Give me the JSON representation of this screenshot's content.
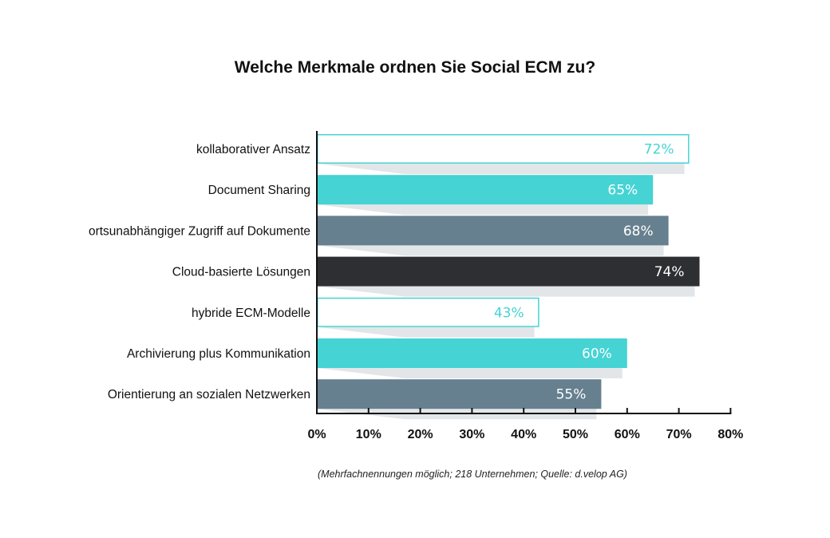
{
  "chart_data": {
    "type": "bar",
    "orientation": "horizontal",
    "title": "Welche Merkmale ordnen Sie Social ECM zu?",
    "categories": [
      "kollaborativer Ansatz",
      "Document Sharing",
      "ortsunabhängiger Zugriff auf Dokumente",
      "Cloud-basierte Lösungen",
      "hybride ECM-Modelle",
      "Archivierung plus Kommunikation",
      "Orientierung an sozialen Netzwerken"
    ],
    "values": [
      72,
      65,
      68,
      74,
      43,
      60,
      55
    ],
    "value_labels": [
      "72%",
      "65%",
      "68%",
      "74%",
      "43%",
      "60%",
      "55%"
    ],
    "bar_styles": [
      "outline",
      "teal",
      "slate",
      "dark",
      "outline",
      "teal",
      "slate"
    ],
    "xlim": [
      0,
      80
    ],
    "xticks": [
      0,
      10,
      20,
      30,
      40,
      50,
      60,
      70,
      80
    ],
    "xtick_labels": [
      "0%",
      "10%",
      "20%",
      "30%",
      "40%",
      "50%",
      "60%",
      "70%",
      "80%"
    ],
    "grid": false,
    "legend": "none",
    "footnote": "(Mehrfachnennungen möglich; 218 Unternehmen; Quelle: d.velop AG)",
    "colors": {
      "teal": "#45d3d4",
      "slate": "#66808f",
      "dark": "#2e2f32",
      "outline_stroke": "#45d3d4",
      "outline_text": "#45d3d4",
      "shadow": "#e3e6e8",
      "axis": "#111111",
      "filled_text": "#ffffff"
    }
  }
}
